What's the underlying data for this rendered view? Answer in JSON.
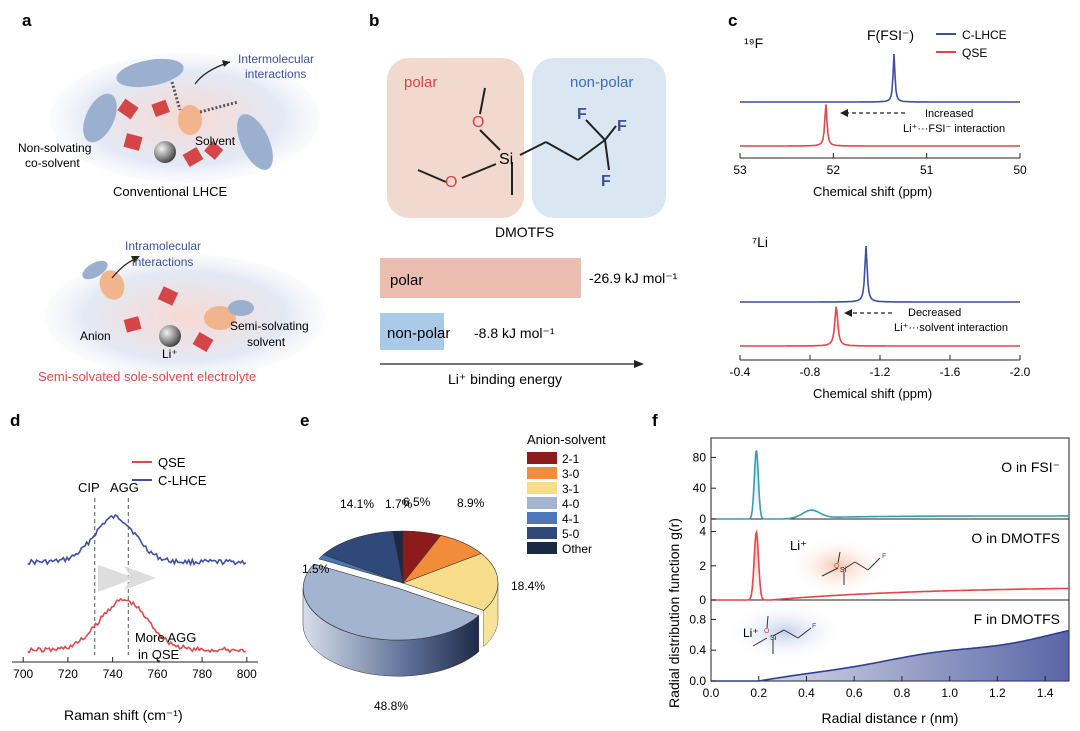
{
  "panel_labels": {
    "a": "a",
    "b": "b",
    "c": "c",
    "d": "d",
    "e": "e",
    "f": "f"
  },
  "colors": {
    "red": "#e0474c",
    "blue": "#3f4f9e",
    "teal": "#3c9bb0",
    "navy": "#2f3f8f",
    "polar_fill": "#f2d9cf",
    "nonpolar_fill": "#dbe6f3"
  },
  "panel_a": {
    "top": {
      "intermolecular": "Intermolecular",
      "interactions": "interactions",
      "solvent": "Solvent",
      "non_solvating": "Non-solvating",
      "co_solvent": "co-solvent",
      "caption": "Conventional LHCE"
    },
    "bottom": {
      "intramolecular": "Intramolecular",
      "interactions": "interactions",
      "anion": "Anion",
      "li": "Li⁺",
      "semi_solvating": "Semi-solvating",
      "solvent": "solvent",
      "caption": "Semi-solvated sole-solvent electrolyte"
    }
  },
  "panel_b": {
    "polar": "polar",
    "nonpolar": "non-polar",
    "molecule_name": "DMOTFS",
    "atoms": {
      "o": "O",
      "si": "Si",
      "f": "F"
    },
    "bars": [
      {
        "label": "polar",
        "value_text": "-26.9 kJ mol⁻¹"
      },
      {
        "label": "non-polar",
        "value_text": "-8.8 kJ mol⁻¹"
      }
    ],
    "axis_label": "Li⁺ binding energy"
  },
  "chart_data": [
    {
      "id": "c-19F",
      "type": "line",
      "nucleus": "¹⁹F",
      "peak_label": "F(FSI⁻)",
      "legend": [
        {
          "name": "C-LHCE",
          "color": "#3f4f9e"
        },
        {
          "name": "QSE",
          "color": "#e0474c"
        }
      ],
      "series": [
        {
          "name": "C-LHCE",
          "peak_x": 51.35
        },
        {
          "name": "QSE",
          "peak_x": 52.08
        }
      ],
      "annotation": [
        "Increased",
        "Li⁺···FSI⁻ interaction"
      ],
      "xlim": [
        53,
        50
      ],
      "xticks": [
        "53",
        "52",
        "51",
        "50"
      ],
      "xlabel": "Chemical shift (ppm)"
    },
    {
      "id": "c-7Li",
      "type": "line",
      "nucleus": "⁷Li",
      "series": [
        {
          "name": "C-LHCE",
          "peak_x": -1.12
        },
        {
          "name": "QSE",
          "peak_x": -0.95
        }
      ],
      "annotation": [
        "Decreased",
        "Li⁺···solvent interaction"
      ],
      "xlim": [
        -0.4,
        -2.0
      ],
      "xticks": [
        "-0.4",
        "-0.8",
        "-1.2",
        "-1.6",
        "-2.0"
      ],
      "xlabel": "Chemical shift (ppm)"
    },
    {
      "id": "d-raman",
      "type": "line",
      "legend": [
        {
          "name": "QSE",
          "color": "#e0474c"
        },
        {
          "name": "C-LHCE",
          "color": "#3f4f9e"
        }
      ],
      "vlines": [
        {
          "label": "CIP",
          "x": 732
        },
        {
          "label": "AGG",
          "x": 747
        }
      ],
      "annotation": [
        "More AGG",
        "in QSE"
      ],
      "xlim": [
        695,
        805
      ],
      "xticks": [
        "700",
        "720",
        "740",
        "760",
        "780",
        "800"
      ],
      "xlabel": "Raman shift (cm⁻¹)"
    },
    {
      "id": "e-pie",
      "type": "pie",
      "legend_title": "Anion-solvent",
      "categories": [
        "2-1",
        "3-0",
        "3-1",
        "4-0",
        "4-1",
        "5-0",
        "Other"
      ],
      "values": [
        6.5,
        8.9,
        18.4,
        48.8,
        1.5,
        14.1,
        1.7
      ],
      "value_labels": [
        "6.5%",
        "8.9%",
        "18.4%",
        "48.8%",
        "1.5%",
        "14.1%",
        "1.7%"
      ],
      "colors": [
        "#8e1b1b",
        "#f28c3b",
        "#f7dc8a",
        "#a3b4d0",
        "#4a78b8",
        "#2f4a7a",
        "#1b2a44"
      ]
    },
    {
      "id": "f-rdf",
      "type": "area",
      "ylabel": "Radial distribution function g(r)",
      "xlabel": "Radial distance r (nm)",
      "xlim": [
        0,
        1.5
      ],
      "xticks": [
        "0.0",
        "0.2",
        "0.4",
        "0.6",
        "0.8",
        "1.0",
        "1.2",
        "1.4"
      ],
      "panels": [
        {
          "label": "O in FSI⁻",
          "color": "#3c9bb0",
          "ylim": [
            0,
            100
          ],
          "yticks": [
            "0",
            "40",
            "80"
          ],
          "peak": {
            "r": 0.19,
            "g": 90
          }
        },
        {
          "label": "O in DMOTFS",
          "color": "#e0474c",
          "ylim": [
            0,
            4.5
          ],
          "yticks": [
            "0",
            "2",
            "4"
          ],
          "peak": {
            "r": 0.19,
            "g": 4.0
          },
          "li": "Li⁺"
        },
        {
          "label": "F in DMOTFS",
          "color": "#2f3f8f",
          "ylim": [
            0,
            1.0
          ],
          "yticks": [
            "0.0",
            "0.4",
            "0.8"
          ],
          "end": {
            "r": 1.5,
            "g": 0.63
          },
          "li": "Li⁺"
        }
      ]
    }
  ]
}
